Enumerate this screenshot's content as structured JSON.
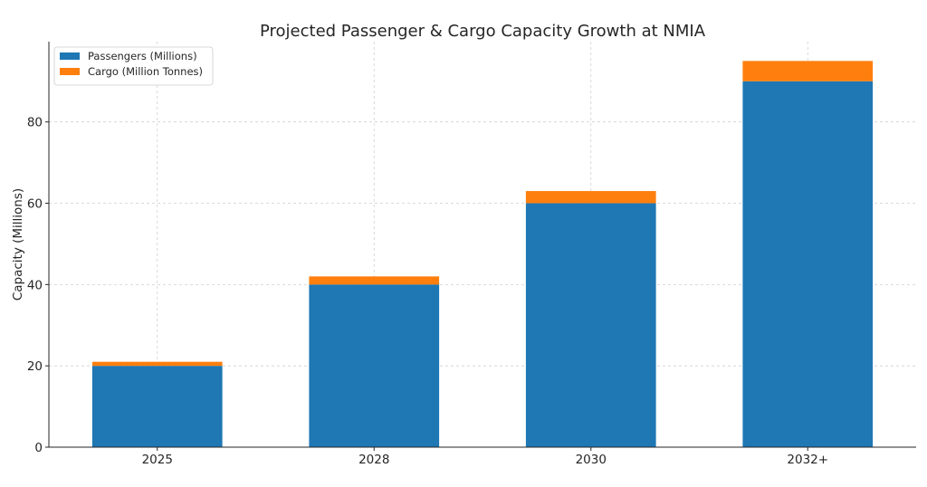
{
  "chart_data": {
    "type": "bar",
    "stacked": true,
    "title": "Projected Passenger & Cargo Capacity Growth at NMIA",
    "xlabel": "",
    "ylabel": "Capacity (Millions)",
    "categories": [
      "2025",
      "2028",
      "2030",
      "2032+"
    ],
    "series": [
      {
        "name": "Passengers (Millions)",
        "values": [
          20,
          40,
          60,
          90
        ],
        "color": "#1f77b4"
      },
      {
        "name": "Cargo (Million Tonnes)",
        "values": [
          1,
          2,
          3,
          5
        ],
        "color": "#ff7f0e"
      }
    ],
    "ylim": [
      0,
      99.75
    ],
    "yticks": [
      0,
      20,
      40,
      60,
      80
    ],
    "grid": true,
    "legend_position": "top-left"
  }
}
